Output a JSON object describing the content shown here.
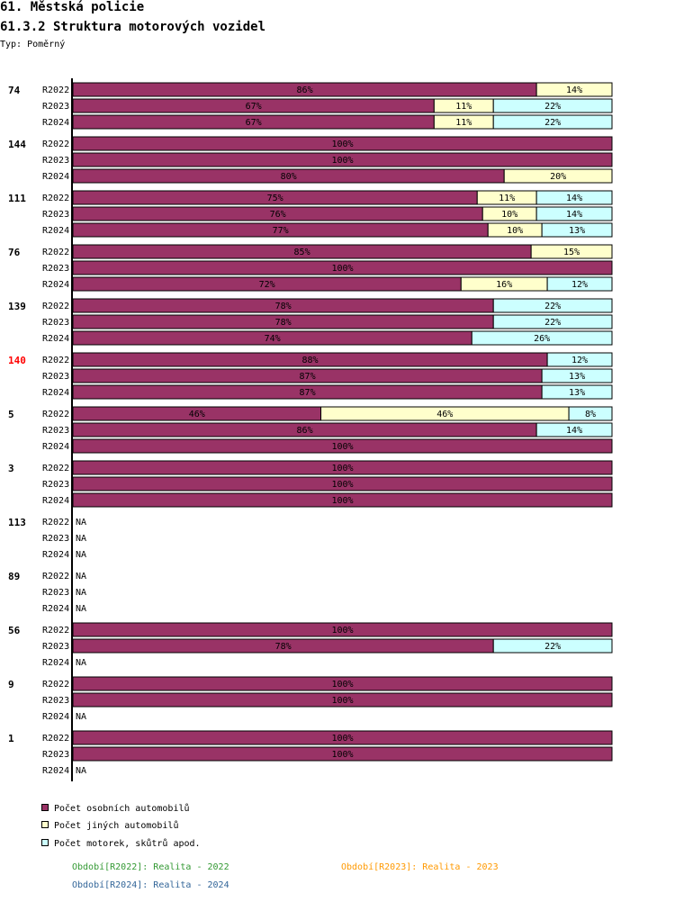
{
  "header": {
    "title": "61. Městská policie",
    "subtitle": "61.3.2 Struktura motorových vozidel",
    "type_label": "Typ: Poměrný"
  },
  "colors": {
    "series_0": "#993366",
    "series_1": "#ffffcc",
    "series_2": "#ccffff",
    "highlight_group": "#ff0000",
    "period_2022": "#339933",
    "period_2023": "#ff9900",
    "period_2024": "#336699"
  },
  "legend": {
    "items": [
      {
        "label": "Počet osobních automobilů"
      },
      {
        "label": "Počet jiných automobilů"
      },
      {
        "label": "Počet motorek, skůtrů apod."
      }
    ],
    "periods": [
      {
        "label": "Období[R2022]: Realita - 2022"
      },
      {
        "label": "Období[R2023]: Realita - 2023"
      },
      {
        "label": "Období[R2024]: Realita - 2024"
      }
    ]
  },
  "chart_data": {
    "type": "bar",
    "orientation": "horizontal",
    "stacked": true,
    "normalized": true,
    "xlim": [
      0,
      100
    ],
    "unit": "%",
    "na_label": "NA",
    "series": [
      {
        "name": "Počet osobních automobilů"
      },
      {
        "name": "Počet jiných automobilů"
      },
      {
        "name": "Počet motorek, skůtrů apod."
      }
    ],
    "groups": [
      {
        "label": "74",
        "highlight": false,
        "rows": [
          {
            "period": "R2022",
            "values": [
              86,
              14,
              0
            ]
          },
          {
            "period": "R2023",
            "values": [
              67,
              11,
              22
            ]
          },
          {
            "period": "R2024",
            "values": [
              67,
              11,
              22
            ]
          }
        ]
      },
      {
        "label": "144",
        "highlight": false,
        "rows": [
          {
            "period": "R2022",
            "values": [
              100,
              0,
              0
            ]
          },
          {
            "period": "R2023",
            "values": [
              100,
              0,
              0
            ]
          },
          {
            "period": "R2024",
            "values": [
              80,
              20,
              0
            ]
          }
        ]
      },
      {
        "label": "111",
        "highlight": false,
        "rows": [
          {
            "period": "R2022",
            "values": [
              75,
              11,
              14
            ]
          },
          {
            "period": "R2023",
            "values": [
              76,
              10,
              14
            ]
          },
          {
            "period": "R2024",
            "values": [
              77,
              10,
              13
            ]
          }
        ]
      },
      {
        "label": "76",
        "highlight": false,
        "rows": [
          {
            "period": "R2022",
            "values": [
              85,
              15,
              0
            ]
          },
          {
            "period": "R2023",
            "values": [
              100,
              0,
              0
            ]
          },
          {
            "period": "R2024",
            "values": [
              72,
              16,
              12
            ]
          }
        ]
      },
      {
        "label": "139",
        "highlight": false,
        "rows": [
          {
            "period": "R2022",
            "values": [
              78,
              0,
              22
            ]
          },
          {
            "period": "R2023",
            "values": [
              78,
              0,
              22
            ]
          },
          {
            "period": "R2024",
            "values": [
              74,
              0,
              26
            ]
          }
        ]
      },
      {
        "label": "140",
        "highlight": true,
        "rows": [
          {
            "period": "R2022",
            "values": [
              88,
              0,
              12
            ]
          },
          {
            "period": "R2023",
            "values": [
              87,
              0,
              13
            ]
          },
          {
            "period": "R2024",
            "values": [
              87,
              0,
              13
            ]
          }
        ]
      },
      {
        "label": "5",
        "highlight": false,
        "rows": [
          {
            "period": "R2022",
            "values": [
              46,
              46,
              8
            ]
          },
          {
            "period": "R2023",
            "values": [
              86,
              0,
              14
            ]
          },
          {
            "period": "R2024",
            "values": [
              100,
              0,
              0
            ]
          }
        ]
      },
      {
        "label": "3",
        "highlight": false,
        "rows": [
          {
            "period": "R2022",
            "values": [
              100,
              0,
              0
            ]
          },
          {
            "period": "R2023",
            "values": [
              100,
              0,
              0
            ]
          },
          {
            "period": "R2024",
            "values": [
              100,
              0,
              0
            ]
          }
        ]
      },
      {
        "label": "113",
        "highlight": false,
        "rows": [
          {
            "period": "R2022",
            "values": null
          },
          {
            "period": "R2023",
            "values": null
          },
          {
            "period": "R2024",
            "values": null
          }
        ]
      },
      {
        "label": "89",
        "highlight": false,
        "rows": [
          {
            "period": "R2022",
            "values": null
          },
          {
            "period": "R2023",
            "values": null
          },
          {
            "period": "R2024",
            "values": null
          }
        ]
      },
      {
        "label": "56",
        "highlight": false,
        "rows": [
          {
            "period": "R2022",
            "values": [
              100,
              0,
              0
            ]
          },
          {
            "period": "R2023",
            "values": [
              78,
              0,
              22
            ]
          },
          {
            "period": "R2024",
            "values": null
          }
        ]
      },
      {
        "label": "9",
        "highlight": false,
        "rows": [
          {
            "period": "R2022",
            "values": [
              100,
              0,
              0
            ]
          },
          {
            "period": "R2023",
            "values": [
              100,
              0,
              0
            ]
          },
          {
            "period": "R2024",
            "values": null
          }
        ]
      },
      {
        "label": "1",
        "highlight": false,
        "rows": [
          {
            "period": "R2022",
            "values": [
              100,
              0,
              0
            ]
          },
          {
            "period": "R2023",
            "values": [
              100,
              0,
              0
            ]
          },
          {
            "period": "R2024",
            "values": null
          }
        ]
      }
    ]
  }
}
